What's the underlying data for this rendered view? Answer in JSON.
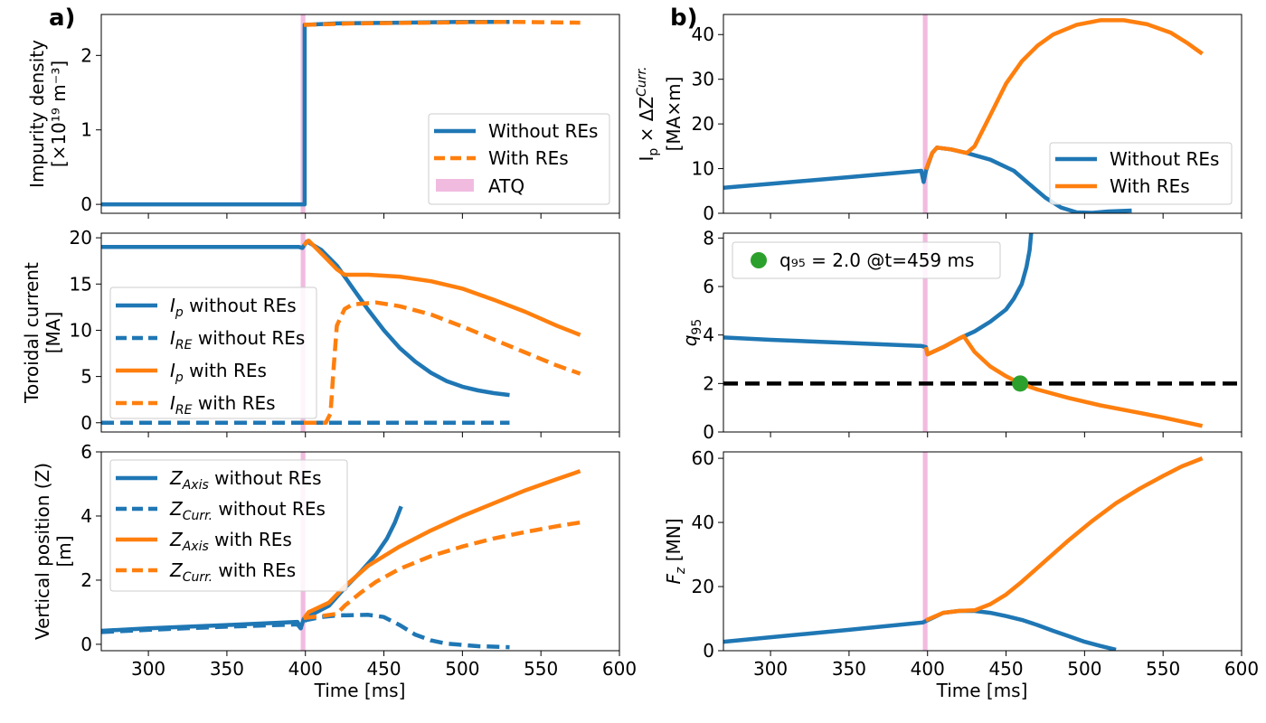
{
  "figure": {
    "panel_labels": [
      "a)",
      "b)"
    ],
    "xlabel": "Time [ms]",
    "xticks": [
      "300",
      "350",
      "400",
      "450",
      "500",
      "550",
      "600"
    ],
    "colors": {
      "blue": "#1f77b4",
      "orange": "#ff7f0e",
      "green": "#2ca02c",
      "atq": "#e377c2",
      "ref": "#000000"
    }
  },
  "chart_data": [
    {
      "id": "impurity",
      "type": "line",
      "ylabel_lines": [
        "Impurity density",
        "[×10¹⁹ m⁻³]"
      ],
      "xlim": [
        270,
        600
      ],
      "ylim": [
        -0.12,
        2.55
      ],
      "yticks": [
        0,
        1,
        2
      ],
      "atq": [
        397,
        400
      ],
      "legend": [
        "Without REs",
        "With REs",
        "ATQ"
      ],
      "series": [
        {
          "name": "Without REs",
          "color": "blue",
          "style": "solid",
          "points": [
            [
              270,
              0
            ],
            [
              399.5,
              0
            ],
            [
              399.5,
              2.41
            ],
            [
              420,
              2.43
            ],
            [
              460,
              2.44
            ],
            [
              500,
              2.45
            ],
            [
              530,
              2.45
            ]
          ]
        },
        {
          "name": "With REs",
          "color": "orange",
          "style": "dashed",
          "points": [
            [
              399,
              2.41
            ],
            [
              430,
              2.43
            ],
            [
              480,
              2.44
            ],
            [
              530,
              2.45
            ],
            [
              575,
              2.44
            ]
          ]
        }
      ]
    },
    {
      "id": "current",
      "type": "line",
      "ylabel_lines": [
        "Toroidal current",
        "[MA]"
      ],
      "xlim": [
        270,
        600
      ],
      "ylim": [
        -1,
        20.5
      ],
      "yticks": [
        0,
        5,
        10,
        15,
        20
      ],
      "atq": [
        397,
        400
      ],
      "legend": [
        "I_p without REs",
        "I_RE without REs",
        "I_p with REs",
        "I_RE with REs"
      ],
      "series": [
        {
          "name": "I_p without REs",
          "color": "blue",
          "style": "solid",
          "points": [
            [
              270,
              19
            ],
            [
              396,
              19
            ],
            [
              398,
              18.9
            ],
            [
              401,
              19.6
            ],
            [
              410,
              18.7
            ],
            [
              420,
              17
            ],
            [
              430,
              14.6
            ],
            [
              440,
              12.2
            ],
            [
              450,
              10
            ],
            [
              460,
              8.1
            ],
            [
              470,
              6.6
            ],
            [
              480,
              5.4
            ],
            [
              490,
              4.5
            ],
            [
              500,
              3.9
            ],
            [
              510,
              3.5
            ],
            [
              520,
              3.2
            ],
            [
              530,
              3
            ]
          ]
        },
        {
          "name": "I_RE without REs",
          "color": "blue",
          "style": "dashed",
          "points": [
            [
              270,
              0
            ],
            [
              530,
              0
            ]
          ]
        },
        {
          "name": "I_p with REs",
          "color": "orange",
          "style": "solid",
          "points": [
            [
              399,
              19.2
            ],
            [
              402,
              19.7
            ],
            [
              412,
              18
            ],
            [
              420,
              16.6
            ],
            [
              425,
              16
            ],
            [
              440,
              16
            ],
            [
              460,
              15.8
            ],
            [
              480,
              15.3
            ],
            [
              500,
              14.5
            ],
            [
              520,
              13.3
            ],
            [
              540,
              12
            ],
            [
              560,
              10.5
            ],
            [
              575,
              9.5
            ]
          ]
        },
        {
          "name": "I_RE with REs",
          "color": "orange",
          "style": "dashed",
          "points": [
            [
              399,
              0
            ],
            [
              413,
              0
            ],
            [
              416,
              1
            ],
            [
              418,
              6
            ],
            [
              420,
              10.5
            ],
            [
              425,
              12.3
            ],
            [
              430,
              12.8
            ],
            [
              445,
              13
            ],
            [
              460,
              12.6
            ],
            [
              480,
              11.7
            ],
            [
              500,
              10.4
            ],
            [
              520,
              9
            ],
            [
              540,
              7.6
            ],
            [
              560,
              6.2
            ],
            [
              575,
              5.3
            ]
          ]
        }
      ]
    },
    {
      "id": "vertical",
      "type": "line",
      "ylabel_lines": [
        "Vertical position (Z)",
        "[m]"
      ],
      "xlim": [
        270,
        600
      ],
      "ylim": [
        -0.2,
        6.0
      ],
      "yticks": [
        0,
        2,
        4,
        6
      ],
      "atq": [
        397,
        400
      ],
      "legend": [
        "Z_Axis without REs",
        "Z_Curr. without REs",
        "Z_Axis with REs",
        "Z_Curr. with REs"
      ],
      "series": [
        {
          "name": "Z_Axis without REs",
          "color": "blue",
          "style": "solid",
          "points": [
            [
              270,
              0.42
            ],
            [
              300,
              0.5
            ],
            [
              350,
              0.6
            ],
            [
              395,
              0.7
            ],
            [
              397,
              0.5
            ],
            [
              399,
              0.8
            ],
            [
              405,
              0.95
            ],
            [
              415,
              1.2
            ],
            [
              425,
              1.75
            ],
            [
              435,
              2.25
            ],
            [
              445,
              2.8
            ],
            [
              452,
              3.3
            ],
            [
              457,
              3.8
            ],
            [
              461,
              4.3
            ]
          ]
        },
        {
          "name": "Z_Curr. without REs",
          "color": "blue",
          "style": "dashed",
          "points": [
            [
              270,
              0.38
            ],
            [
              300,
              0.45
            ],
            [
              350,
              0.55
            ],
            [
              395,
              0.62
            ],
            [
              397,
              0.5
            ],
            [
              400,
              0.75
            ],
            [
              410,
              0.85
            ],
            [
              420,
              0.9
            ],
            [
              440,
              0.92
            ],
            [
              450,
              0.85
            ],
            [
              460,
              0.6
            ],
            [
              470,
              0.3
            ],
            [
              480,
              0.12
            ],
            [
              490,
              0.02
            ],
            [
              510,
              -0.06
            ],
            [
              530,
              -0.09
            ]
          ]
        },
        {
          "name": "Z_Axis with REs",
          "color": "orange",
          "style": "solid",
          "points": [
            [
              399,
              0.8
            ],
            [
              402,
              1.0
            ],
            [
              415,
              1.3
            ],
            [
              425,
              1.8
            ],
            [
              440,
              2.45
            ],
            [
              460,
              3.05
            ],
            [
              480,
              3.55
            ],
            [
              500,
              4.0
            ],
            [
              520,
              4.4
            ],
            [
              540,
              4.8
            ],
            [
              560,
              5.15
            ],
            [
              575,
              5.4
            ]
          ]
        },
        {
          "name": "Z_Curr. with REs",
          "color": "orange",
          "style": "dashed",
          "points": [
            [
              399,
              0.82
            ],
            [
              410,
              0.88
            ],
            [
              420,
              0.95
            ],
            [
              425,
              1.2
            ],
            [
              435,
              1.6
            ],
            [
              445,
              1.95
            ],
            [
              460,
              2.35
            ],
            [
              480,
              2.75
            ],
            [
              500,
              3.05
            ],
            [
              520,
              3.3
            ],
            [
              540,
              3.5
            ],
            [
              560,
              3.68
            ],
            [
              575,
              3.8
            ]
          ]
        }
      ]
    },
    {
      "id": "ipdz",
      "type": "line",
      "ylabel_lines": [
        "I_p × ΔZ_Curr.",
        "[MA×m]"
      ],
      "xlim": [
        270,
        600
      ],
      "ylim": [
        0,
        44.5
      ],
      "yticks": [
        0,
        10,
        20,
        30,
        40
      ],
      "atq": [
        397,
        400
      ],
      "legend": [
        "Without REs",
        "With REs"
      ],
      "series": [
        {
          "name": "Without REs",
          "color": "blue",
          "style": "solid",
          "points": [
            [
              270,
              5.7
            ],
            [
              300,
              6.6
            ],
            [
              350,
              8.1
            ],
            [
              396,
              9.5
            ],
            [
              397.5,
              7
            ],
            [
              399,
              9.5
            ],
            [
              403,
              13.5
            ],
            [
              406,
              14.7
            ],
            [
              415,
              14.3
            ],
            [
              425,
              13.5
            ],
            [
              440,
              12
            ],
            [
              455,
              9.5
            ],
            [
              465,
              6.5
            ],
            [
              475,
              3.5
            ],
            [
              485,
              1.3
            ],
            [
              495,
              0.2
            ],
            [
              505,
              0.1
            ],
            [
              515,
              0.4
            ],
            [
              530,
              0.6
            ]
          ]
        },
        {
          "name": "With REs",
          "color": "orange",
          "style": "solid",
          "points": [
            [
              399,
              9.8
            ],
            [
              403,
              13.5
            ],
            [
              406,
              14.7
            ],
            [
              415,
              14.3
            ],
            [
              425,
              13.5
            ],
            [
              430,
              15
            ],
            [
              440,
              22
            ],
            [
              450,
              29
            ],
            [
              460,
              34
            ],
            [
              470,
              37.5
            ],
            [
              480,
              40
            ],
            [
              495,
              42.2
            ],
            [
              510,
              43.2
            ],
            [
              525,
              43.2
            ],
            [
              540,
              42.3
            ],
            [
              555,
              40.4
            ],
            [
              565,
              38.2
            ],
            [
              575,
              35.7
            ]
          ]
        }
      ]
    },
    {
      "id": "q95",
      "type": "line",
      "ylabel_lines": [
        "q₉₅"
      ],
      "xlim": [
        270,
        600
      ],
      "ylim": [
        0,
        8.2
      ],
      "yticks": [
        0,
        2,
        4,
        6,
        8
      ],
      "atq": [
        397,
        400
      ],
      "legend": [
        "q₉₅ = 2.0 @t=459 ms"
      ],
      "reference_line": 2.0,
      "marker": {
        "x": 459,
        "y": 2.0,
        "color": "green"
      },
      "series": [
        {
          "name": "Without REs",
          "color": "blue",
          "style": "solid",
          "points": [
            [
              270,
              3.9
            ],
            [
              300,
              3.8
            ],
            [
              350,
              3.67
            ],
            [
              396,
              3.55
            ],
            [
              399,
              3.5
            ],
            [
              400,
              3.2
            ],
            [
              410,
              3.5
            ],
            [
              420,
              3.85
            ],
            [
              430,
              4.15
            ],
            [
              440,
              4.55
            ],
            [
              450,
              5.05
            ],
            [
              455,
              5.5
            ],
            [
              460,
              6.1
            ],
            [
              463,
              6.8
            ],
            [
              465,
              7.5
            ],
            [
              466,
              8.2
            ]
          ]
        },
        {
          "name": "With REs",
          "color": "orange",
          "style": "solid",
          "points": [
            [
              399,
              3.5
            ],
            [
              400,
              3.2
            ],
            [
              410,
              3.5
            ],
            [
              420,
              3.85
            ],
            [
              423,
              3.95
            ],
            [
              430,
              3.3
            ],
            [
              440,
              2.7
            ],
            [
              450,
              2.3
            ],
            [
              459,
              2.0
            ],
            [
              470,
              1.75
            ],
            [
              490,
              1.4
            ],
            [
              510,
              1.1
            ],
            [
              530,
              0.85
            ],
            [
              550,
              0.6
            ],
            [
              575,
              0.25
            ]
          ]
        }
      ]
    },
    {
      "id": "fz",
      "type": "line",
      "ylabel_lines": [
        "F_z [MN]"
      ],
      "xlim": [
        270,
        600
      ],
      "ylim": [
        0,
        62
      ],
      "yticks": [
        0,
        20,
        40,
        60
      ],
      "atq": [
        397,
        400
      ],
      "legend": [],
      "series": [
        {
          "name": "Without REs",
          "color": "blue",
          "style": "solid",
          "points": [
            [
              270,
              2.8
            ],
            [
              300,
              4.2
            ],
            [
              350,
              6.5
            ],
            [
              397,
              8.8
            ],
            [
              400,
              9.5
            ],
            [
              410,
              11.8
            ],
            [
              420,
              12.4
            ],
            [
              430,
              12.4
            ],
            [
              440,
              11.8
            ],
            [
              450,
              10.8
            ],
            [
              460,
              9.6
            ],
            [
              470,
              8
            ],
            [
              480,
              6.2
            ],
            [
              490,
              4.5
            ],
            [
              500,
              2.8
            ],
            [
              510,
              1.5
            ],
            [
              520,
              0.3
            ]
          ]
        },
        {
          "name": "With REs",
          "color": "orange",
          "style": "solid",
          "points": [
            [
              399,
              9.5
            ],
            [
              410,
              11.8
            ],
            [
              420,
              12.4
            ],
            [
              430,
              12.6
            ],
            [
              440,
              14.5
            ],
            [
              450,
              17.5
            ],
            [
              460,
              21.5
            ],
            [
              475,
              28
            ],
            [
              490,
              34.5
            ],
            [
              505,
              40.5
            ],
            [
              520,
              46
            ],
            [
              535,
              50.5
            ],
            [
              550,
              54.5
            ],
            [
              562,
              57.5
            ],
            [
              575,
              60
            ]
          ]
        }
      ]
    }
  ]
}
